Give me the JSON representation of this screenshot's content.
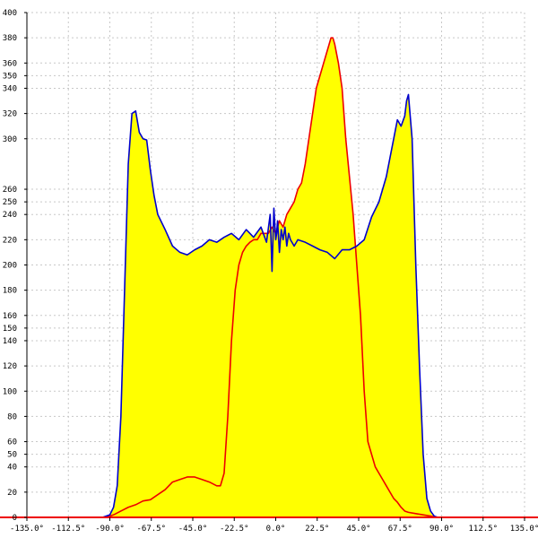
{
  "chart_data": {
    "type": "area",
    "title": "",
    "xlabel": "",
    "ylabel": "",
    "xlim": [
      -135,
      135
    ],
    "ylim": [
      0,
      400
    ],
    "grid": true,
    "x_ticks": [
      {
        "value": -135,
        "label": "-135.0°"
      },
      {
        "value": -112.5,
        "label": "-112.5°"
      },
      {
        "value": -90,
        "label": "-90.0°"
      },
      {
        "value": -67.5,
        "label": "-67.5°"
      },
      {
        "value": -45,
        "label": "-45.0°"
      },
      {
        "value": -22.5,
        "label": "-22.5°"
      },
      {
        "value": 0,
        "label": "0.0°"
      },
      {
        "value": 22.5,
        "label": "22.5°"
      },
      {
        "value": 45,
        "label": "45.0°"
      },
      {
        "value": 67.5,
        "label": "67.5°"
      },
      {
        "value": 90,
        "label": "90.0°"
      },
      {
        "value": 112.5,
        "label": "112.5°"
      },
      {
        "value": 135,
        "label": "135.0°"
      }
    ],
    "y_ticks": [
      {
        "value": 0,
        "label": "0"
      },
      {
        "value": 20,
        "label": "20"
      },
      {
        "value": 40,
        "label": "40"
      },
      {
        "value": 50,
        "label": "50"
      },
      {
        "value": 60,
        "label": "60"
      },
      {
        "value": 80,
        "label": "80"
      },
      {
        "value": 100,
        "label": "100"
      },
      {
        "value": 120,
        "label": "120"
      },
      {
        "value": 140,
        "label": "140"
      },
      {
        "value": 150,
        "label": "150"
      },
      {
        "value": 160,
        "label": "160"
      },
      {
        "value": 180,
        "label": "180"
      },
      {
        "value": 200,
        "label": "200"
      },
      {
        "value": 220,
        "label": "220"
      },
      {
        "value": 240,
        "label": "240"
      },
      {
        "value": 250,
        "label": "250"
      },
      {
        "value": 260,
        "label": "260"
      },
      {
        "value": 300,
        "label": "300"
      },
      {
        "value": 320,
        "label": "320"
      },
      {
        "value": 340,
        "label": "340"
      },
      {
        "value": 350,
        "label": "350"
      },
      {
        "value": 360,
        "label": "360"
      },
      {
        "value": 380,
        "label": "380"
      },
      {
        "value": 400,
        "label": "400"
      }
    ],
    "colors": {
      "fill": "#ffff00",
      "blue_line": "#0000cc",
      "red_line": "#ee0000",
      "baseline": "#ee0000",
      "grid": "#c8c8c8"
    },
    "series": [
      {
        "color": "#0000cc",
        "x": [
          -135,
          -94,
          -90,
          -88,
          -86,
          -84,
          -82,
          -80,
          -78,
          -76,
          -74,
          -72,
          -70,
          -68,
          -66,
          -64,
          -60,
          -56,
          -52,
          -48,
          -44,
          -40,
          -36,
          -32,
          -28,
          -24,
          -20,
          -16,
          -12,
          -8,
          -5,
          -3,
          -2,
          -1,
          0,
          0.5,
          1,
          2,
          3,
          4,
          5,
          6,
          7,
          8,
          10,
          12,
          16,
          20,
          24,
          28,
          32,
          36,
          40,
          44,
          48,
          52,
          56,
          60,
          62,
          64,
          66,
          68,
          70,
          71,
          72,
          74,
          76,
          78,
          80,
          82,
          84,
          86,
          88,
          90,
          135
        ],
        "y": [
          0,
          0,
          2,
          8,
          25,
          80,
          180,
          280,
          320,
          322,
          305,
          300,
          299,
          275,
          255,
          240,
          228,
          215,
          210,
          208,
          212,
          215,
          220,
          218,
          222,
          225,
          220,
          228,
          222,
          230,
          218,
          240,
          195,
          245,
          220,
          225,
          235,
          210,
          228,
          220,
          230,
          215,
          225,
          220,
          215,
          220,
          218,
          215,
          212,
          210,
          205,
          212,
          212,
          215,
          220,
          238,
          250,
          270,
          285,
          300,
          315,
          310,
          318,
          330,
          335,
          300,
          200,
          120,
          50,
          15,
          5,
          1,
          0,
          0,
          0
        ]
      },
      {
        "color": "#ee0000",
        "x": [
          -135,
          -92,
          -88,
          -84,
          -80,
          -76,
          -72,
          -68,
          -64,
          -60,
          -56,
          -52,
          -48,
          -44,
          -40,
          -36,
          -32,
          -30,
          -28,
          -26,
          -24,
          -22,
          -20,
          -18,
          -16,
          -14,
          -12,
          -10,
          -8,
          -6,
          -4,
          -2,
          0,
          2,
          4,
          6,
          8,
          10,
          12,
          14,
          16,
          18,
          20,
          22,
          24,
          26,
          28,
          30,
          31,
          32,
          34,
          36,
          38,
          40,
          42,
          44,
          46,
          48,
          50,
          52,
          54,
          56,
          58,
          60,
          62,
          64,
          66,
          68,
          70,
          72,
          76,
          80,
          84,
          88,
          90,
          135
        ],
        "y": [
          0,
          0,
          2,
          5,
          8,
          10,
          13,
          14,
          18,
          22,
          28,
          30,
          32,
          32,
          30,
          28,
          25,
          25,
          35,
          80,
          140,
          180,
          200,
          210,
          215,
          218,
          220,
          220,
          225,
          225,
          225,
          230,
          225,
          235,
          230,
          240,
          245,
          250,
          260,
          265,
          280,
          300,
          320,
          340,
          350,
          360,
          370,
          380,
          380,
          375,
          360,
          340,
          300,
          270,
          240,
          200,
          160,
          100,
          60,
          50,
          40,
          35,
          30,
          25,
          20,
          15,
          12,
          8,
          5,
          4,
          3,
          2,
          1,
          0,
          0,
          0
        ]
      }
    ]
  }
}
